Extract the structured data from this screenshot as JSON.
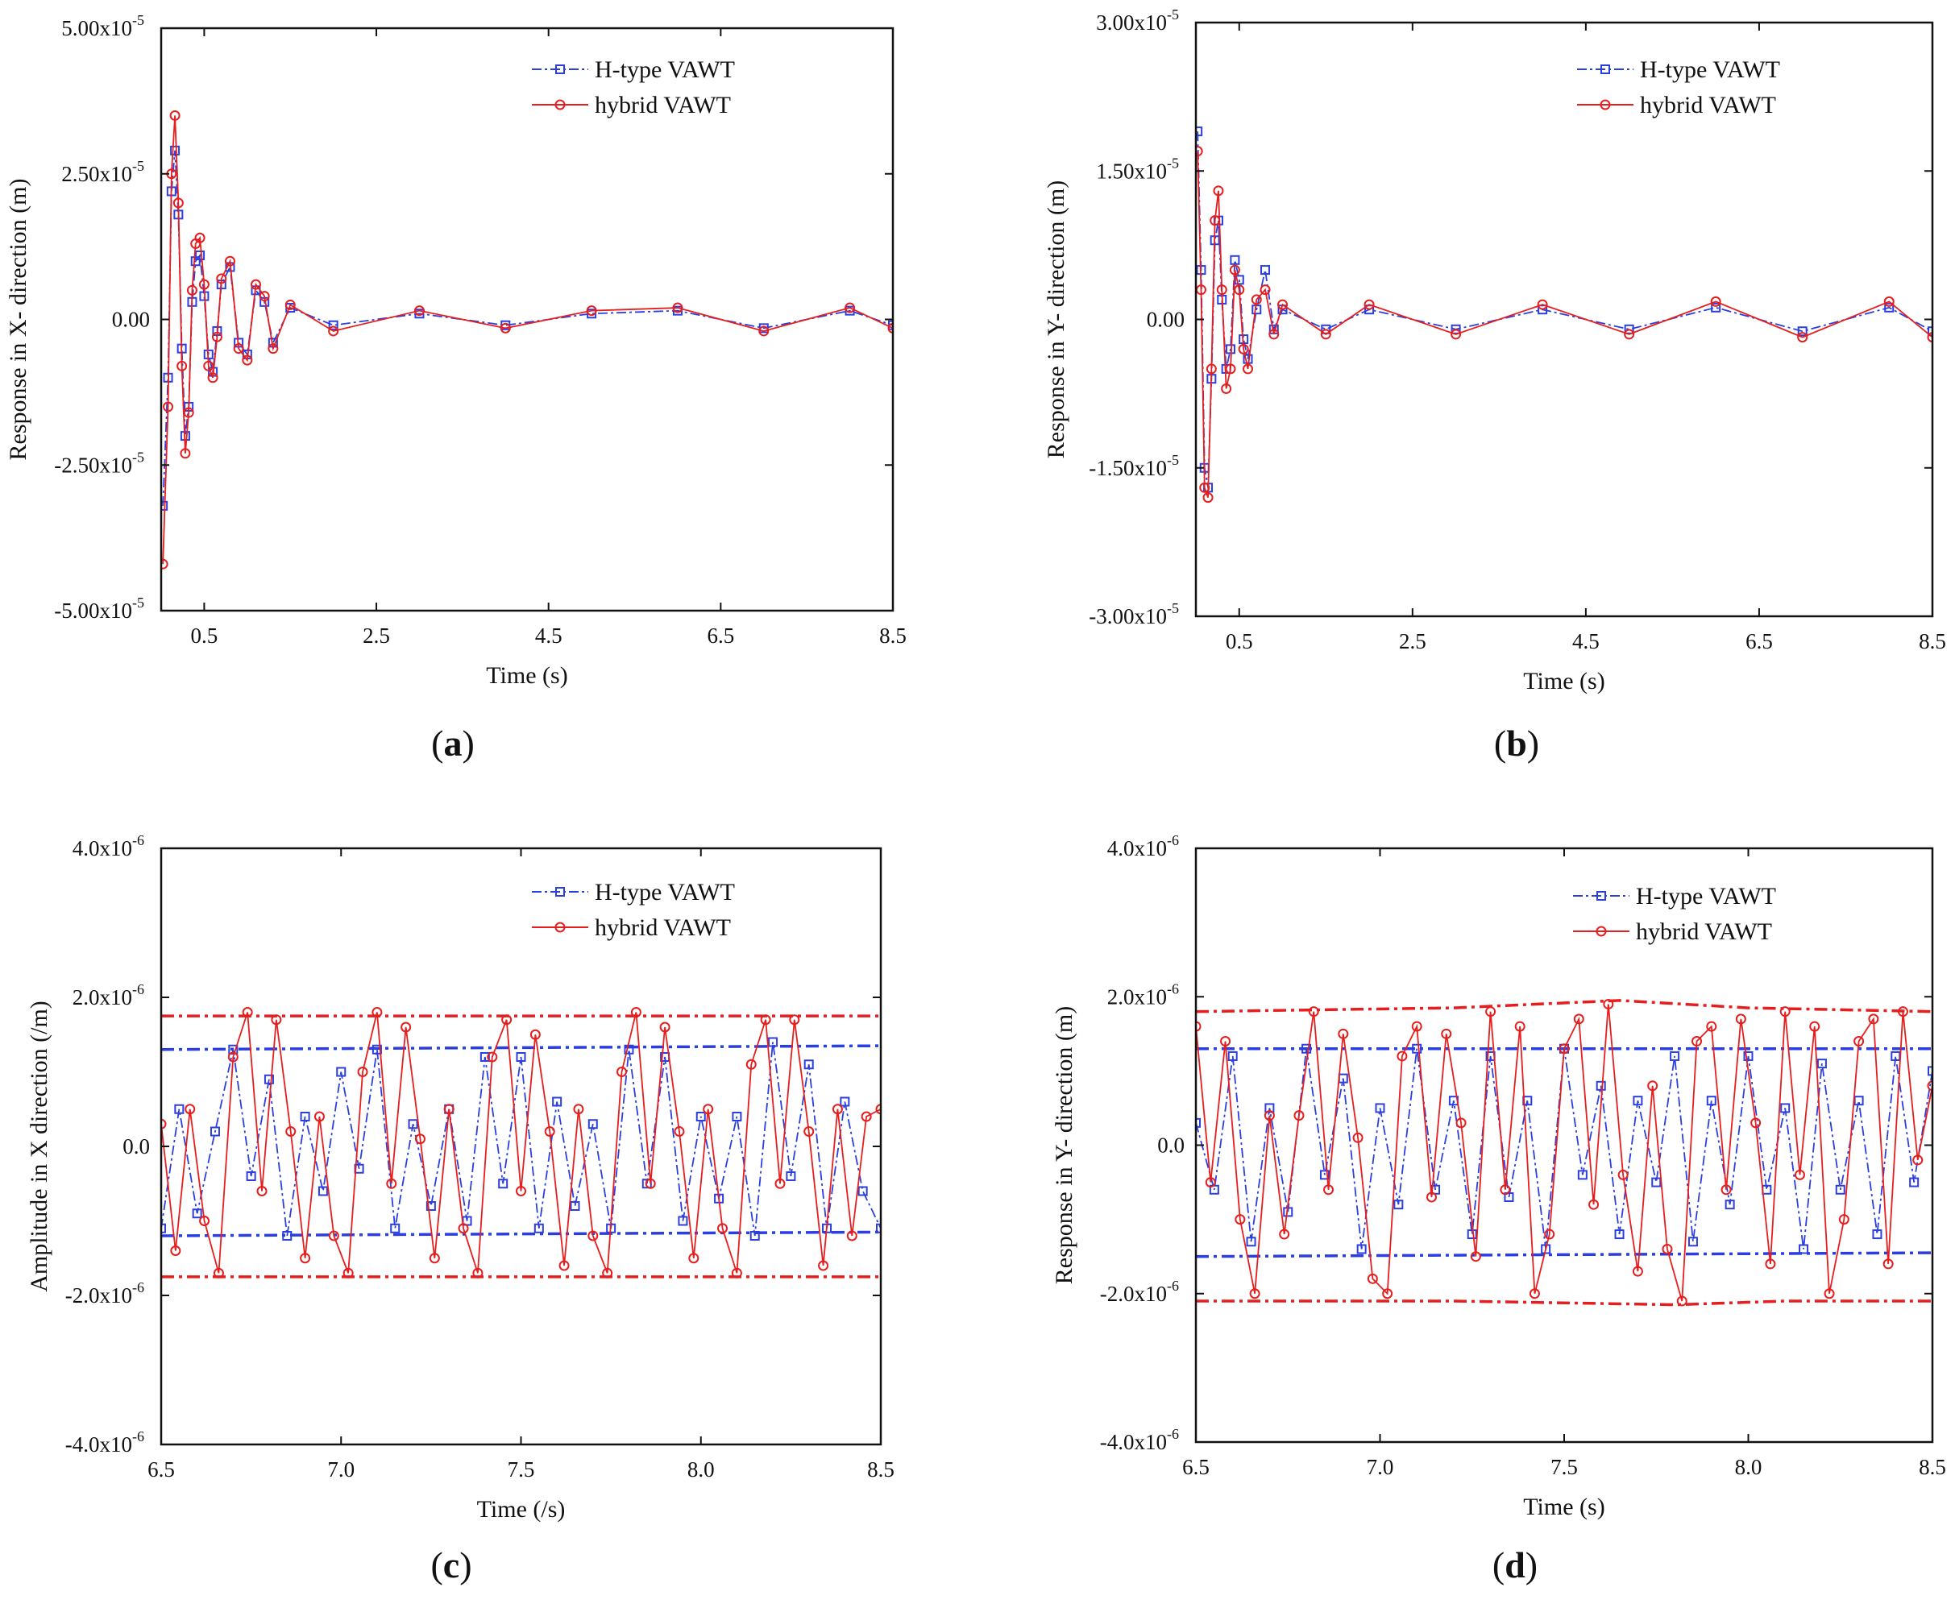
{
  "figure": {
    "colors": {
      "h_type": "#2b3fe0",
      "hybrid": "#e61e1e",
      "axis": "#111111"
    }
  },
  "chart_data": [
    {
      "id": "a",
      "type": "line",
      "panel_label": "a",
      "xlabel": "Time (s)",
      "ylabel": "Response in X- direction (m)",
      "xlim": [
        0,
        8.5
      ],
      "ylim": [
        -5e-05,
        5e-05
      ],
      "x_ticks": [
        0.5,
        2.5,
        4.5,
        6.5,
        8.5
      ],
      "x_tick_labels": [
        "0.5",
        "2.5",
        "4.5",
        "6.5",
        "8.5"
      ],
      "y_ticks": [
        5e-05,
        2.5e-05,
        0,
        -2.5e-05,
        -5e-05
      ],
      "y_tick_labels": [
        [
          "5.00x10",
          "-5"
        ],
        [
          "2.50x10",
          "-5"
        ],
        [
          "0.00",
          ""
        ],
        [
          "-2.50x10",
          "-5"
        ],
        [
          "-5.00x10",
          "-5"
        ]
      ],
      "legend": {
        "position": "top-right",
        "entries": [
          "H-type VAWT",
          "hybrid VAWT"
        ]
      },
      "series": [
        {
          "name": "H-type VAWT",
          "color": "#2b3fe0",
          "marker": "square",
          "line": "dash-dot",
          "x": [
            0.02,
            0.08,
            0.12,
            0.16,
            0.2,
            0.24,
            0.28,
            0.32,
            0.36,
            0.4,
            0.45,
            0.5,
            0.55,
            0.6,
            0.65,
            0.7,
            0.8,
            0.9,
            1.0,
            1.1,
            1.2,
            1.3,
            1.5,
            2.0,
            3.0,
            4.0,
            5.0,
            6.0,
            7.0,
            8.0,
            8.5
          ],
          "values": [
            -3.2e-05,
            -1e-05,
            2.2e-05,
            2.9e-05,
            1.8e-05,
            -5e-06,
            -2e-05,
            -1.5e-05,
            3e-06,
            1e-05,
            1.1e-05,
            4e-06,
            -6e-06,
            -9e-06,
            -2e-06,
            6e-06,
            9e-06,
            -4e-06,
            -6e-06,
            5e-06,
            3e-06,
            -4e-06,
            2e-06,
            -1e-06,
            1e-06,
            -1e-06,
            1e-06,
            1.5e-06,
            -1.5e-06,
            1.5e-06,
            -1e-06
          ]
        },
        {
          "name": "hybrid VAWT",
          "color": "#e61e1e",
          "marker": "circle",
          "line": "solid",
          "x": [
            0.02,
            0.08,
            0.12,
            0.16,
            0.2,
            0.24,
            0.28,
            0.32,
            0.36,
            0.4,
            0.45,
            0.5,
            0.55,
            0.6,
            0.65,
            0.7,
            0.8,
            0.9,
            1.0,
            1.1,
            1.2,
            1.3,
            1.5,
            2.0,
            3.0,
            4.0,
            5.0,
            6.0,
            7.0,
            8.0,
            8.5
          ],
          "values": [
            -4.2e-05,
            -1.5e-05,
            2.5e-05,
            3.5e-05,
            2e-05,
            -8e-06,
            -2.3e-05,
            -1.6e-05,
            5e-06,
            1.3e-05,
            1.4e-05,
            6e-06,
            -8e-06,
            -1e-05,
            -3e-06,
            7e-06,
            1e-05,
            -5e-06,
            -7e-06,
            6e-06,
            4e-06,
            -5e-06,
            2.5e-06,
            -2e-06,
            1.5e-06,
            -1.5e-06,
            1.5e-06,
            2e-06,
            -2e-06,
            2e-06,
            -1.5e-06
          ]
        }
      ]
    },
    {
      "id": "b",
      "type": "line",
      "panel_label": "b",
      "xlabel": "Time (s)",
      "ylabel": "Response in Y- direction (m)",
      "xlim": [
        0,
        8.5
      ],
      "ylim": [
        -3e-05,
        3e-05
      ],
      "x_ticks": [
        0.5,
        2.5,
        4.5,
        6.5,
        8.5
      ],
      "x_tick_labels": [
        "0.5",
        "2.5",
        "4.5",
        "6.5",
        "8.5"
      ],
      "y_ticks": [
        3e-05,
        1.5e-05,
        0,
        -1.5e-05,
        -3e-05
      ],
      "y_tick_labels": [
        [
          "3.00x10",
          "-5"
        ],
        [
          "1.50x10",
          "-5"
        ],
        [
          "0.00",
          ""
        ],
        [
          "-1.50x10",
          "-5"
        ],
        [
          "-3.00x10",
          "-5"
        ]
      ],
      "legend": {
        "position": "top-right",
        "entries": [
          "H-type VAWT",
          "hybrid VAWT"
        ]
      },
      "series": [
        {
          "name": "H-type VAWT",
          "color": "#2b3fe0",
          "marker": "square",
          "line": "dash-dot",
          "x": [
            0.02,
            0.06,
            0.1,
            0.14,
            0.18,
            0.22,
            0.26,
            0.3,
            0.35,
            0.4,
            0.45,
            0.5,
            0.55,
            0.6,
            0.7,
            0.8,
            0.9,
            1.0,
            1.5,
            2.0,
            3.0,
            4.0,
            5.0,
            6.0,
            7.0,
            8.0,
            8.5
          ],
          "values": [
            1.9e-05,
            5e-06,
            -1.5e-05,
            -1.7e-05,
            -6e-06,
            8e-06,
            1e-05,
            2e-06,
            -5e-06,
            -3e-06,
            6e-06,
            4e-06,
            -2e-06,
            -4e-06,
            1e-06,
            5e-06,
            -1e-06,
            1e-06,
            -1e-06,
            1e-06,
            -1e-06,
            1e-06,
            -1e-06,
            1.2e-06,
            -1.2e-06,
            1.2e-06,
            -1.2e-06
          ]
        },
        {
          "name": "hybrid VAWT",
          "color": "#e61e1e",
          "marker": "circle",
          "line": "solid",
          "x": [
            0.02,
            0.06,
            0.1,
            0.14,
            0.18,
            0.22,
            0.26,
            0.3,
            0.35,
            0.4,
            0.45,
            0.5,
            0.55,
            0.6,
            0.7,
            0.8,
            0.9,
            1.0,
            1.5,
            2.0,
            3.0,
            4.0,
            5.0,
            6.0,
            7.0,
            8.0,
            8.5
          ],
          "values": [
            1.7e-05,
            3e-06,
            -1.7e-05,
            -1.8e-05,
            -5e-06,
            1e-05,
            1.3e-05,
            3e-06,
            -7e-06,
            -5e-06,
            5e-06,
            3e-06,
            -3e-06,
            -5e-06,
            2e-06,
            3e-06,
            -1.5e-06,
            1.5e-06,
            -1.5e-06,
            1.5e-06,
            -1.5e-06,
            1.5e-06,
            -1.5e-06,
            1.8e-06,
            -1.8e-06,
            1.8e-06,
            -1.8e-06
          ]
        }
      ]
    },
    {
      "id": "c",
      "type": "line",
      "panel_label": "c",
      "xlabel": "Time (/s)",
      "ylabel": "Amplitude in X direction (/m)",
      "xlim": [
        6.5,
        8.5
      ],
      "ylim": [
        -4e-06,
        4e-06
      ],
      "x_ticks": [
        6.5,
        7.0,
        7.5,
        8.0,
        8.5
      ],
      "x_tick_labels": [
        "6.5",
        "7.0",
        "7.5",
        "8.0",
        "8.5"
      ],
      "y_ticks": [
        4e-06,
        2e-06,
        0,
        -2e-06,
        -4e-06
      ],
      "y_tick_labels": [
        [
          "4.0x10",
          "-6"
        ],
        [
          "2.0x10",
          "-6"
        ],
        [
          "0.0",
          ""
        ],
        [
          "-2.0x10",
          "-6"
        ],
        [
          "-4.0x10",
          "-6"
        ]
      ],
      "legend": {
        "position": "top-right",
        "entries": [
          "H-type VAWT",
          "hybrid VAWT"
        ]
      },
      "envelopes": [
        {
          "color": "#2b3fe0",
          "x": [
            6.5,
            8.5
          ],
          "values": [
            1.3e-06,
            1.35e-06
          ]
        },
        {
          "color": "#2b3fe0",
          "x": [
            6.5,
            8.5
          ],
          "values": [
            -1.2e-06,
            -1.15e-06
          ]
        },
        {
          "color": "#e61e1e",
          "x": [
            6.5,
            8.5
          ],
          "values": [
            1.75e-06,
            1.75e-06
          ]
        },
        {
          "color": "#e61e1e",
          "x": [
            6.5,
            8.5
          ],
          "values": [
            -1.75e-06,
            -1.75e-06
          ]
        }
      ],
      "series": [
        {
          "name": "H-type VAWT",
          "color": "#2b3fe0",
          "marker": "square",
          "line": "dash-dot",
          "x": [
            6.5,
            6.55,
            6.6,
            6.65,
            6.7,
            6.75,
            6.8,
            6.85,
            6.9,
            6.95,
            7.0,
            7.05,
            7.1,
            7.15,
            7.2,
            7.25,
            7.3,
            7.35,
            7.4,
            7.45,
            7.5,
            7.55,
            7.6,
            7.65,
            7.7,
            7.75,
            7.8,
            7.85,
            7.9,
            7.95,
            8.0,
            8.05,
            8.1,
            8.15,
            8.2,
            8.25,
            8.3,
            8.35,
            8.4,
            8.45,
            8.5
          ],
          "values": [
            -1.1e-06,
            5e-07,
            -9e-07,
            2e-07,
            1.3e-06,
            -4e-07,
            9e-07,
            -1.2e-06,
            4e-07,
            -6e-07,
            1e-06,
            -3e-07,
            1.3e-06,
            -1.1e-06,
            3e-07,
            -8e-07,
            5e-07,
            -1e-06,
            1.2e-06,
            -5e-07,
            1.2e-06,
            -1.1e-06,
            6e-07,
            -8e-07,
            3e-07,
            -1.1e-06,
            1.3e-06,
            -5e-07,
            1.2e-06,
            -1e-06,
            4e-07,
            -7e-07,
            4e-07,
            -1.2e-06,
            1.4e-06,
            -4e-07,
            1.1e-06,
            -1.1e-06,
            6e-07,
            -6e-07,
            -1.1e-06
          ]
        },
        {
          "name": "hybrid VAWT",
          "color": "#e61e1e",
          "marker": "circle",
          "line": "solid",
          "x": [
            6.5,
            6.54,
            6.58,
            6.62,
            6.66,
            6.7,
            6.74,
            6.78,
            6.82,
            6.86,
            6.9,
            6.94,
            6.98,
            7.02,
            7.06,
            7.1,
            7.14,
            7.18,
            7.22,
            7.26,
            7.3,
            7.34,
            7.38,
            7.42,
            7.46,
            7.5,
            7.54,
            7.58,
            7.62,
            7.66,
            7.7,
            7.74,
            7.78,
            7.82,
            7.86,
            7.9,
            7.94,
            7.98,
            8.02,
            8.06,
            8.1,
            8.14,
            8.18,
            8.22,
            8.26,
            8.3,
            8.34,
            8.38,
            8.42,
            8.46,
            8.5
          ],
          "values": [
            3e-07,
            -1.4e-06,
            5e-07,
            -1e-06,
            -1.7e-06,
            1.2e-06,
            1.8e-06,
            -6e-07,
            1.7e-06,
            2e-07,
            -1.5e-06,
            4e-07,
            -1.2e-06,
            -1.7e-06,
            1e-06,
            1.8e-06,
            -5e-07,
            1.6e-06,
            1e-07,
            -1.5e-06,
            5e-07,
            -1.1e-06,
            -1.7e-06,
            1.2e-06,
            1.7e-06,
            -6e-07,
            1.5e-06,
            2e-07,
            -1.6e-06,
            5e-07,
            -1.2e-06,
            -1.7e-06,
            1e-06,
            1.8e-06,
            -5e-07,
            1.6e-06,
            2e-07,
            -1.5e-06,
            5e-07,
            -1.1e-06,
            -1.7e-06,
            1.1e-06,
            1.7e-06,
            -5e-07,
            1.7e-06,
            2e-07,
            -1.6e-06,
            5e-07,
            -1.2e-06,
            4e-07,
            5e-07
          ]
        }
      ]
    },
    {
      "id": "d",
      "type": "line",
      "panel_label": "d",
      "xlabel": "Time (s)",
      "ylabel": "Response in Y- direction (m)",
      "xlim": [
        6.5,
        8.5
      ],
      "ylim": [
        -4e-06,
        4e-06
      ],
      "x_ticks": [
        6.5,
        7.0,
        7.5,
        8.0,
        8.5
      ],
      "x_tick_labels": [
        "6.5",
        "7.0",
        "7.5",
        "8.0",
        "8.5"
      ],
      "y_ticks": [
        4e-06,
        2e-06,
        0,
        -2e-06,
        -4e-06
      ],
      "y_tick_labels": [
        [
          "4.0x10",
          "-6"
        ],
        [
          "2.0x10",
          "-6"
        ],
        [
          "0.0",
          ""
        ],
        [
          "-2.0x10",
          "-6"
        ],
        [
          "-4.0x10",
          "-6"
        ]
      ],
      "legend": {
        "position": "top-right",
        "entries": [
          "H-type VAWT",
          "hybrid VAWT"
        ]
      },
      "envelopes": [
        {
          "color": "#2b3fe0",
          "x": [
            6.5,
            8.5
          ],
          "values": [
            1.3e-06,
            1.3e-06
          ]
        },
        {
          "color": "#2b3fe0",
          "x": [
            6.5,
            8.5
          ],
          "values": [
            -1.5e-06,
            -1.45e-06
          ]
        },
        {
          "color": "#e61e1e",
          "x": [
            6.5,
            7.2,
            7.65,
            8.0,
            8.5
          ],
          "values": [
            1.8e-06,
            1.85e-06,
            1.95e-06,
            1.85e-06,
            1.8e-06
          ]
        },
        {
          "color": "#e61e1e",
          "x": [
            6.5,
            7.2,
            7.8,
            8.1,
            8.5
          ],
          "values": [
            -2.1e-06,
            -2.1e-06,
            -2.15e-06,
            -2.1e-06,
            -2.1e-06
          ]
        }
      ],
      "series": [
        {
          "name": "H-type VAWT",
          "color": "#2b3fe0",
          "marker": "square",
          "line": "dash-dot",
          "x": [
            6.5,
            6.55,
            6.6,
            6.65,
            6.7,
            6.75,
            6.8,
            6.85,
            6.9,
            6.95,
            7.0,
            7.05,
            7.1,
            7.15,
            7.2,
            7.25,
            7.3,
            7.35,
            7.4,
            7.45,
            7.5,
            7.55,
            7.6,
            7.65,
            7.7,
            7.75,
            7.8,
            7.85,
            7.9,
            7.95,
            8.0,
            8.05,
            8.1,
            8.15,
            8.2,
            8.25,
            8.3,
            8.35,
            8.4,
            8.45,
            8.5
          ],
          "values": [
            3e-07,
            -6e-07,
            1.2e-06,
            -1.3e-06,
            5e-07,
            -9e-07,
            1.3e-06,
            -4e-07,
            9e-07,
            -1.4e-06,
            5e-07,
            -8e-07,
            1.3e-06,
            -6e-07,
            6e-07,
            -1.2e-06,
            1.2e-06,
            -7e-07,
            6e-07,
            -1.4e-06,
            1.3e-06,
            -4e-07,
            8e-07,
            -1.2e-06,
            6e-07,
            -5e-07,
            1.2e-06,
            -1.3e-06,
            6e-07,
            -8e-07,
            1.2e-06,
            -6e-07,
            5e-07,
            -1.4e-06,
            1.1e-06,
            -6e-07,
            6e-07,
            -1.2e-06,
            1.2e-06,
            -5e-07,
            1e-06
          ]
        },
        {
          "name": "hybrid VAWT",
          "color": "#e61e1e",
          "marker": "circle",
          "line": "solid",
          "x": [
            6.5,
            6.54,
            6.58,
            6.62,
            6.66,
            6.7,
            6.74,
            6.78,
            6.82,
            6.86,
            6.9,
            6.94,
            6.98,
            7.02,
            7.06,
            7.1,
            7.14,
            7.18,
            7.22,
            7.26,
            7.3,
            7.34,
            7.38,
            7.42,
            7.46,
            7.5,
            7.54,
            7.58,
            7.62,
            7.66,
            7.7,
            7.74,
            7.78,
            7.82,
            7.86,
            7.9,
            7.94,
            7.98,
            8.02,
            8.06,
            8.1,
            8.14,
            8.18,
            8.22,
            8.26,
            8.3,
            8.34,
            8.38,
            8.42,
            8.46,
            8.5
          ],
          "values": [
            1.6e-06,
            -5e-07,
            1.4e-06,
            -1e-06,
            -2e-06,
            4e-07,
            -1.2e-06,
            4e-07,
            1.8e-06,
            -6e-07,
            1.5e-06,
            1e-07,
            -1.8e-06,
            -2e-06,
            1.2e-06,
            1.6e-06,
            -7e-07,
            1.5e-06,
            3e-07,
            -1.5e-06,
            1.8e-06,
            -6e-07,
            1.6e-06,
            -2e-06,
            -1.2e-06,
            1.3e-06,
            1.7e-06,
            -8e-07,
            1.9e-06,
            -4e-07,
            -1.7e-06,
            8e-07,
            -1.4e-06,
            -2.1e-06,
            1.4e-06,
            1.6e-06,
            -6e-07,
            1.7e-06,
            3e-07,
            -1.6e-06,
            1.8e-06,
            -4e-07,
            1.6e-06,
            -2e-06,
            -1e-06,
            1.4e-06,
            1.7e-06,
            -1.6e-06,
            1.8e-06,
            -2e-07,
            8e-07
          ]
        }
      ]
    }
  ]
}
